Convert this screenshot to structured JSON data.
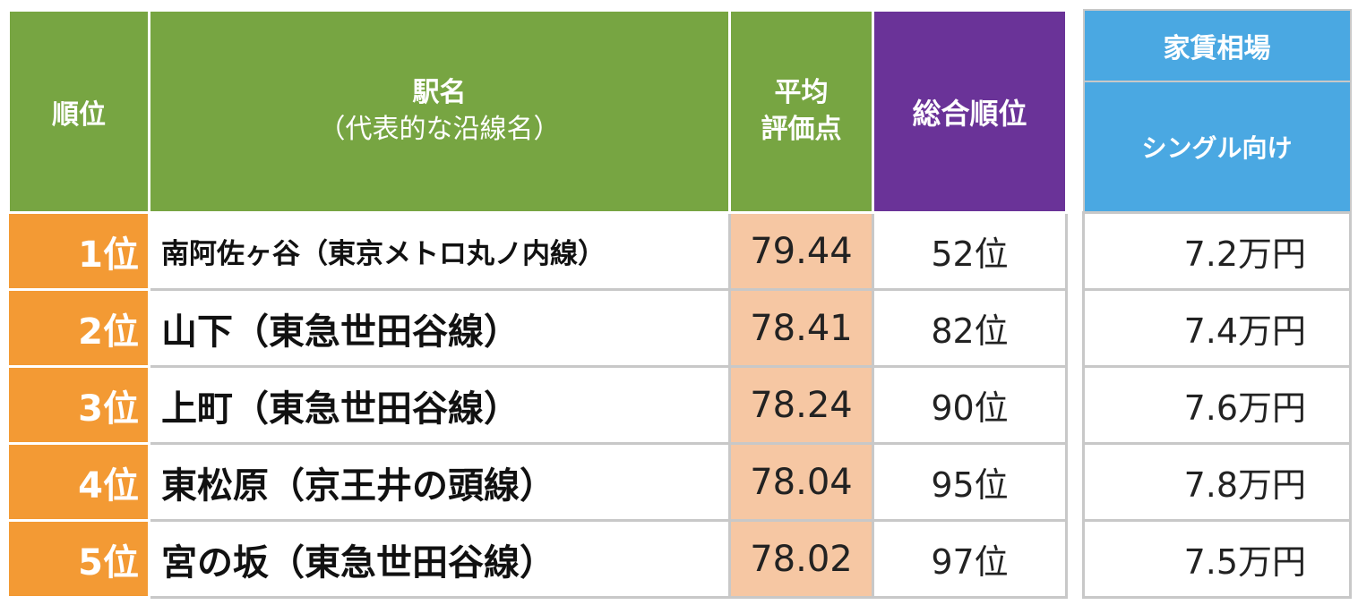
{
  "header": {
    "rank": "順位",
    "station_line1": "駅名",
    "station_line2": "（代表的な沿線名）",
    "score_line1": "平均",
    "score_line2": "評価点",
    "overall": "総合順位",
    "rent_title": "家賃相場",
    "rent_sub": "シングル向け"
  },
  "rows": [
    {
      "rank": "1位",
      "station": "南阿佐ヶ谷（東京メトロ丸ノ内線）",
      "score": "79.44",
      "overall": "52位",
      "rent": "7.2万円"
    },
    {
      "rank": "2位",
      "station": "山下（東急世田谷線）",
      "score": "78.41",
      "overall": "82位",
      "rent": "7.4万円"
    },
    {
      "rank": "3位",
      "station": "上町（東急世田谷線）",
      "score": "78.24",
      "overall": "90位",
      "rent": "7.6万円"
    },
    {
      "rank": "4位",
      "station": "東松原（京王井の頭線）",
      "score": "78.04",
      "overall": "95位",
      "rent": "7.8万円"
    },
    {
      "rank": "5位",
      "station": "宮の坂（東急世田谷線）",
      "score": "78.02",
      "overall": "97位",
      "rent": "7.5万円"
    }
  ],
  "colors": {
    "header_green": "#77a542",
    "header_purple": "#6a3398",
    "header_blue": "#4aa8e2",
    "rank_orange": "#f39a34",
    "score_peach": "#f6c7a3"
  }
}
